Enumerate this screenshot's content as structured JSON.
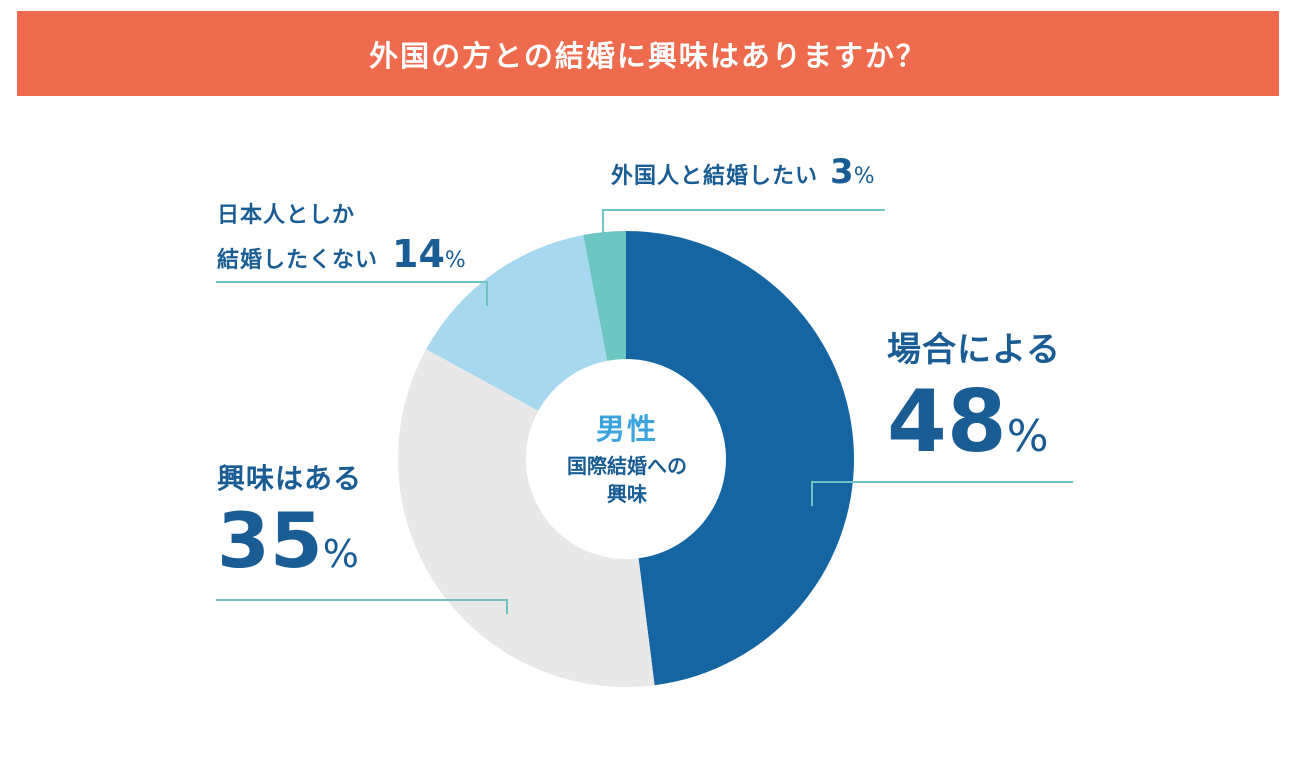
{
  "title": "外国の方との結婚に興味はありますか？",
  "center": {
    "gender": "男性",
    "line1": "国際結婚への",
    "line2": "興味"
  },
  "colors": {
    "banner": "#ee6b4d",
    "label_text": "#1a5d94",
    "center_gender": "#3ba3dd",
    "leader_line": "#6fc3c4"
  },
  "chart_data": {
    "type": "pie",
    "variant": "donut",
    "title": "外国の方との結婚に興味はありますか？",
    "subtitle": "男性 国際結婚への興味",
    "unit": "%",
    "slices": [
      {
        "label": "場合による",
        "value": 48,
        "color": "#1565a3"
      },
      {
        "label": "興味はある",
        "value": 35,
        "color": "#e8e8e8"
      },
      {
        "label": "日本人としか結婚したくない",
        "label_lines": [
          "日本人としか",
          "結婚したくない"
        ],
        "value": 14,
        "color": "#a7d8ef"
      },
      {
        "label": "外国人と結婚したい",
        "value": 3,
        "color": "#6cc6c1"
      }
    ]
  }
}
